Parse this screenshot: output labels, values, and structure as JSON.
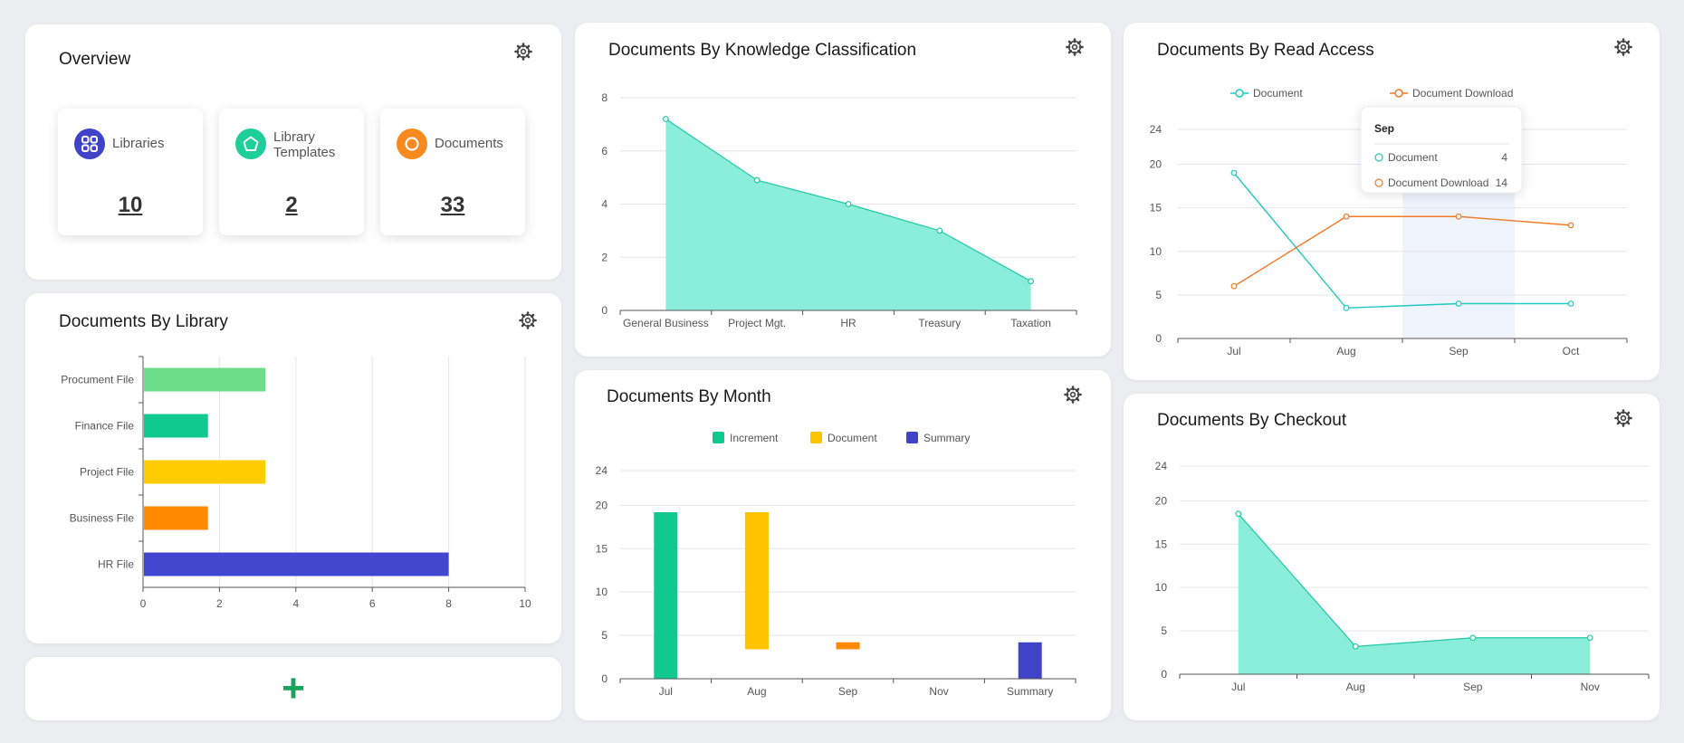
{
  "overview": {
    "title": "Overview",
    "stats": [
      {
        "label": "Libraries",
        "value": "10",
        "color": "#3f43c8"
      },
      {
        "label": "Library Templates",
        "label_line1": "Library",
        "label_line2": "Templates",
        "value": "2",
        "color": "#1ecf9a"
      },
      {
        "label": "Documents",
        "value": "33",
        "color": "#f68a1e"
      }
    ]
  },
  "add_widget": {
    "label": "+"
  },
  "charts": {
    "by_library": {
      "title": "Documents By Library",
      "chart_data": {
        "type": "bar",
        "orientation": "horizontal",
        "categories": [
          "Procument File",
          "Finance File",
          "Project File",
          "Business File",
          "HR File"
        ],
        "values": [
          3.2,
          1.7,
          3.2,
          1.7,
          8
        ],
        "colors": [
          "#6ddc8a",
          "#10c98f",
          "#ffcc00",
          "#ff8a00",
          "#4247cf"
        ],
        "xlim": [
          0,
          10
        ],
        "xticks": [
          "0",
          "2",
          "4",
          "6",
          "8",
          "10"
        ],
        "grid": true
      }
    },
    "by_classification": {
      "title": "Documents By Knowledge Classification",
      "chart_data": {
        "type": "area",
        "categories": [
          "General Business",
          "Project Mgt.",
          "HR",
          "Treasury",
          "Taxation"
        ],
        "values": [
          7.2,
          4.9,
          4.0,
          3.0,
          1.1
        ],
        "ylim": [
          0,
          8
        ],
        "yticks": [
          "0",
          "2",
          "4",
          "6",
          "8"
        ],
        "color": "#20c9a6",
        "fill": "#8aeedb"
      }
    },
    "by_read_access": {
      "title": "Documents By Read Access",
      "chart_data": {
        "type": "line",
        "categories": [
          "Jul",
          "Aug",
          "Sep",
          "Oct"
        ],
        "series": [
          {
            "name": "Document",
            "values": [
              19,
              3.5,
              4,
              4
            ],
            "color": "#20c9c0"
          },
          {
            "name": "Document Download",
            "values": [
              6,
              14,
              14,
              13
            ],
            "color": "#f07a26"
          }
        ],
        "ylim": [
          0,
          24
        ],
        "yticks": [
          "0",
          "5",
          "10",
          "15",
          "20",
          "24"
        ],
        "legend": "top",
        "highlight_category": "Sep"
      },
      "tooltip": {
        "title": "Sep",
        "rows": [
          {
            "name": "Document",
            "value": "4"
          },
          {
            "name": "Document Download",
            "value": "14"
          }
        ]
      }
    },
    "by_month": {
      "title": "Documents By Month",
      "chart_data": {
        "type": "bar",
        "stacked": "waterfall",
        "categories": [
          "Jul",
          "Aug",
          "Sep",
          "Nov",
          "Summary"
        ],
        "series": [
          {
            "name": "Increment",
            "color": "#10c98f"
          },
          {
            "name": "Document",
            "color": "#ffc300"
          },
          {
            "name": "Summary",
            "color": "#3f43c8"
          }
        ],
        "bars": [
          {
            "category": "Jul",
            "from": 0,
            "to": 19.2,
            "series": "Increment",
            "color": "#10c98f"
          },
          {
            "category": "Aug",
            "from": 3.4,
            "to": 19.2,
            "series": "Document",
            "color": "#ffc300"
          },
          {
            "category": "Sep",
            "from": 3.4,
            "to": 4.2,
            "series": "Document",
            "color": "#ff8a00"
          },
          {
            "category": "Summary",
            "from": 0,
            "to": 4.2,
            "series": "Summary",
            "color": "#3f43c8"
          }
        ],
        "ylim": [
          0,
          24
        ],
        "yticks": [
          "0",
          "5",
          "10",
          "15",
          "20",
          "24"
        ],
        "legend": "top"
      }
    },
    "by_checkout": {
      "title": "Documents By Checkout",
      "chart_data": {
        "type": "area",
        "categories": [
          "Jul",
          "Aug",
          "Sep",
          "Nov"
        ],
        "values": [
          18.5,
          3.2,
          4.2,
          4.2
        ],
        "ylim": [
          0,
          24
        ],
        "yticks": [
          "0",
          "5",
          "10",
          "15",
          "20",
          "24"
        ],
        "color": "#20c9a6",
        "fill": "#8aeedb"
      }
    }
  }
}
